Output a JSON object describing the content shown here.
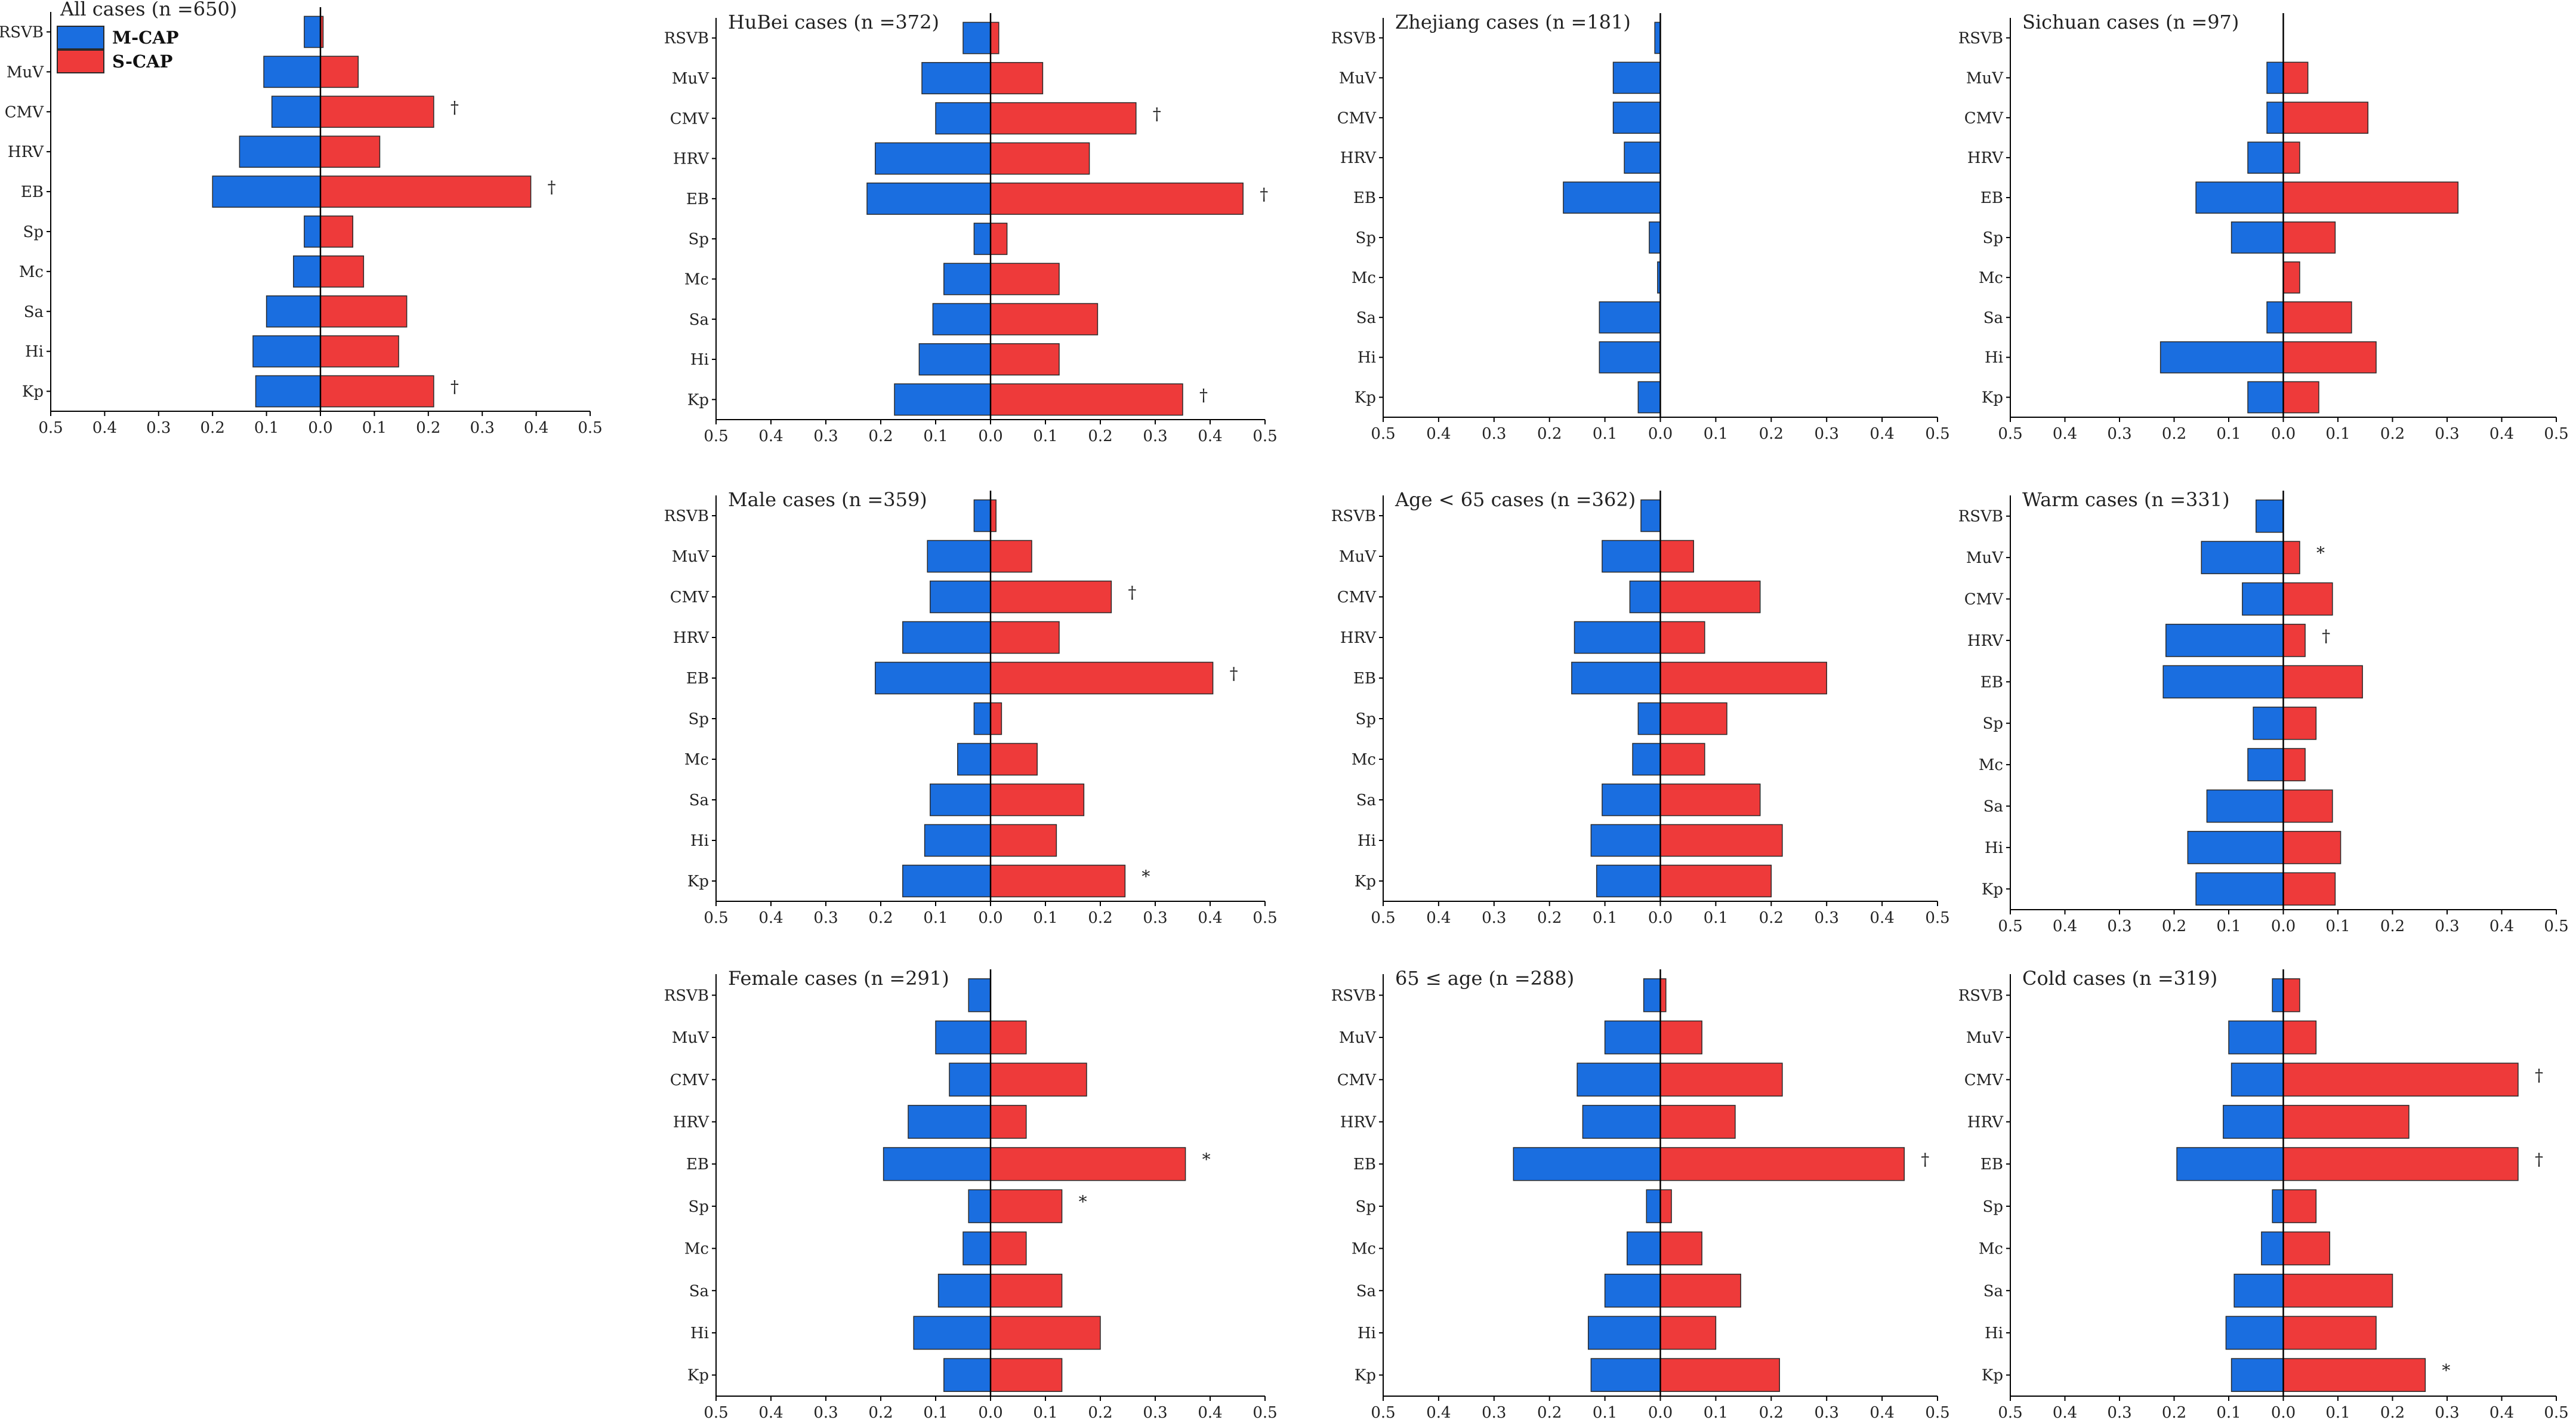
{
  "legend": {
    "items": [
      {
        "label": "M-CAP",
        "color": "#1a6ee0"
      },
      {
        "label": "S-CAP",
        "color": "#ee3a3a"
      }
    ]
  },
  "colors": {
    "m_cap": "#1a6ee0",
    "s_cap": "#ee3a3a",
    "outline": "#2a2a2a"
  },
  "chart_data": [
    {
      "type": "bar",
      "orientation": "horizontal",
      "layout": "diverging",
      "title": "All cases (n =650)",
      "categories": [
        "RSVB",
        "MuV",
        "CMV",
        "HRV",
        "EB",
        "Sp",
        "Mc",
        "Sa",
        "Hi",
        "Kp"
      ],
      "series": [
        {
          "name": "M-CAP",
          "values": [
            0.03,
            0.105,
            0.09,
            0.15,
            0.2,
            0.03,
            0.05,
            0.1,
            0.125,
            0.12
          ]
        },
        {
          "name": "S-CAP",
          "values": [
            0.005,
            0.07,
            0.21,
            0.11,
            0.39,
            0.06,
            0.08,
            0.16,
            0.145,
            0.21
          ]
        }
      ],
      "marks": [
        "",
        "",
        "†",
        "",
        "†",
        "",
        "",
        "",
        "",
        "†"
      ],
      "xlim": [
        -0.5,
        0.5
      ],
      "xtick_labels": [
        "0.5",
        "0.4",
        "0.3",
        "0.2",
        "0.1",
        "0.0",
        "0.1",
        "0.2",
        "0.3",
        "0.4",
        "0.5"
      ]
    },
    {
      "type": "bar",
      "orientation": "horizontal",
      "layout": "diverging",
      "title": "HuBei cases (n =372)",
      "categories": [
        "RSVB",
        "MuV",
        "CMV",
        "HRV",
        "EB",
        "Sp",
        "Mc",
        "Sa",
        "Hi",
        "Kp"
      ],
      "series": [
        {
          "name": "M-CAP",
          "values": [
            0.05,
            0.125,
            0.1,
            0.21,
            0.225,
            0.03,
            0.085,
            0.105,
            0.13,
            0.175
          ]
        },
        {
          "name": "S-CAP",
          "values": [
            0.015,
            0.095,
            0.265,
            0.18,
            0.46,
            0.03,
            0.125,
            0.195,
            0.125,
            0.35
          ]
        }
      ],
      "marks": [
        "",
        "",
        "†",
        "",
        "†",
        "",
        "",
        "",
        "",
        "†"
      ],
      "xlim": [
        -0.5,
        0.5
      ],
      "xtick_labels": [
        "0.5",
        "0.4",
        "0.3",
        "0.2",
        "0.1",
        "0.0",
        "0.1",
        "0.2",
        "0.3",
        "0.4",
        "0.5"
      ]
    },
    {
      "type": "bar",
      "orientation": "horizontal",
      "layout": "diverging",
      "title": "Zhejiang cases (n =181)",
      "categories": [
        "RSVB",
        "MuV",
        "CMV",
        "HRV",
        "EB",
        "Sp",
        "Mc",
        "Sa",
        "Hi",
        "Kp"
      ],
      "series": [
        {
          "name": "M-CAP",
          "values": [
            0.01,
            0.085,
            0.085,
            0.065,
            0.175,
            0.02,
            0.005,
            0.11,
            0.11,
            0.04
          ]
        },
        {
          "name": "S-CAP",
          "values": [
            0,
            0,
            0,
            0,
            0,
            0,
            0,
            0,
            0,
            0
          ]
        }
      ],
      "marks": [
        "",
        "",
        "",
        "",
        "",
        "",
        "",
        "",
        "",
        ""
      ],
      "xlim": [
        -0.5,
        0.5
      ],
      "xtick_labels": [
        "0.5",
        "0.4",
        "0.3",
        "0.2",
        "0.1",
        "0.0",
        "0.1",
        "0.2",
        "0.3",
        "0.4",
        "0.5"
      ]
    },
    {
      "type": "bar",
      "orientation": "horizontal",
      "layout": "diverging",
      "title": "Sichuan cases (n =97)",
      "categories": [
        "RSVB",
        "MuV",
        "CMV",
        "HRV",
        "EB",
        "Sp",
        "Mc",
        "Sa",
        "Hi",
        "Kp"
      ],
      "series": [
        {
          "name": "M-CAP",
          "values": [
            0,
            0.03,
            0.03,
            0.065,
            0.16,
            0.095,
            0,
            0.03,
            0.225,
            0.065
          ]
        },
        {
          "name": "S-CAP",
          "values": [
            0,
            0.045,
            0.155,
            0.03,
            0.32,
            0.095,
            0.03,
            0.125,
            0.17,
            0.065
          ]
        }
      ],
      "marks": [
        "",
        "",
        "",
        "",
        "",
        "",
        "",
        "",
        "",
        ""
      ],
      "xlim": [
        -0.5,
        0.5
      ],
      "xtick_labels": [
        "0.5",
        "0.4",
        "0.3",
        "0.2",
        "0.1",
        "0.0",
        "0.1",
        "0.2",
        "0.3",
        "0.4",
        "0.5"
      ]
    },
    {
      "type": "bar",
      "orientation": "horizontal",
      "layout": "diverging",
      "title": "Male cases (n =359)",
      "categories": [
        "RSVB",
        "MuV",
        "CMV",
        "HRV",
        "EB",
        "Sp",
        "Mc",
        "Sa",
        "Hi",
        "Kp"
      ],
      "series": [
        {
          "name": "M-CAP",
          "values": [
            0.03,
            0.115,
            0.11,
            0.16,
            0.21,
            0.03,
            0.06,
            0.11,
            0.12,
            0.16
          ]
        },
        {
          "name": "S-CAP",
          "values": [
            0.01,
            0.075,
            0.22,
            0.125,
            0.405,
            0.02,
            0.085,
            0.17,
            0.12,
            0.245
          ]
        }
      ],
      "marks": [
        "",
        "",
        "†",
        "",
        "†",
        "",
        "",
        "",
        "",
        "*"
      ],
      "xlim": [
        -0.5,
        0.5
      ],
      "xtick_labels": [
        "0.5",
        "0.4",
        "0.3",
        "0.2",
        "0.1",
        "0.0",
        "0.1",
        "0.2",
        "0.3",
        "0.4",
        "0.5"
      ]
    },
    {
      "type": "bar",
      "orientation": "horizontal",
      "layout": "diverging",
      "title": "Age < 65 cases (n =362)",
      "categories": [
        "RSVB",
        "MuV",
        "CMV",
        "HRV",
        "EB",
        "Sp",
        "Mc",
        "Sa",
        "Hi",
        "Kp"
      ],
      "series": [
        {
          "name": "M-CAP",
          "values": [
            0.035,
            0.105,
            0.055,
            0.155,
            0.16,
            0.04,
            0.05,
            0.105,
            0.125,
            0.115
          ]
        },
        {
          "name": "S-CAP",
          "values": [
            0,
            0.06,
            0.18,
            0.08,
            0.3,
            0.12,
            0.08,
            0.18,
            0.22,
            0.2
          ]
        }
      ],
      "marks": [
        "",
        "",
        "",
        "",
        "",
        "",
        "",
        "",
        "",
        ""
      ],
      "xlim": [
        -0.5,
        0.5
      ],
      "xtick_labels": [
        "0.5",
        "0.4",
        "0.3",
        "0.2",
        "0.1",
        "0.0",
        "0.1",
        "0.2",
        "0.3",
        "0.4",
        "0.5"
      ]
    },
    {
      "type": "bar",
      "orientation": "horizontal",
      "layout": "diverging",
      "title": "Warm cases (n =331)",
      "categories": [
        "RSVB",
        "MuV",
        "CMV",
        "HRV",
        "EB",
        "Sp",
        "Mc",
        "Sa",
        "Hi",
        "Kp"
      ],
      "series": [
        {
          "name": "M-CAP",
          "values": [
            0.05,
            0.15,
            0.075,
            0.215,
            0.22,
            0.055,
            0.065,
            0.14,
            0.175,
            0.16
          ]
        },
        {
          "name": "S-CAP",
          "values": [
            0,
            0.03,
            0.09,
            0.04,
            0.145,
            0.06,
            0.04,
            0.09,
            0.105,
            0.095
          ]
        }
      ],
      "marks": [
        "",
        "*",
        "",
        "†",
        "",
        "",
        "",
        "",
        "",
        ""
      ],
      "xlim": [
        -0.5,
        0.5
      ],
      "xtick_labels": [
        "0.5",
        "0.4",
        "0.3",
        "0.2",
        "0.1",
        "0.0",
        "0.1",
        "0.2",
        "0.3",
        "0.4",
        "0.5"
      ]
    },
    {
      "type": "bar",
      "orientation": "horizontal",
      "layout": "diverging",
      "title": "Female cases (n =291)",
      "categories": [
        "RSVB",
        "MuV",
        "CMV",
        "HRV",
        "EB",
        "Sp",
        "Mc",
        "Sa",
        "Hi",
        "Kp"
      ],
      "series": [
        {
          "name": "M-CAP",
          "values": [
            0.04,
            0.1,
            0.075,
            0.15,
            0.195,
            0.04,
            0.05,
            0.095,
            0.14,
            0.085
          ]
        },
        {
          "name": "S-CAP",
          "values": [
            0,
            0.065,
            0.175,
            0.065,
            0.355,
            0.13,
            0.065,
            0.13,
            0.2,
            0.13
          ]
        }
      ],
      "marks": [
        "",
        "",
        "",
        "",
        "*",
        "*",
        "",
        "",
        "",
        ""
      ],
      "xlim": [
        -0.5,
        0.5
      ],
      "xtick_labels": [
        "0.5",
        "0.4",
        "0.3",
        "0.2",
        "0.1",
        "0.0",
        "0.1",
        "0.2",
        "0.3",
        "0.4",
        "0.5"
      ]
    },
    {
      "type": "bar",
      "orientation": "horizontal",
      "layout": "diverging",
      "title": "65 ≤ age  (n =288)",
      "categories": [
        "RSVB",
        "MuV",
        "CMV",
        "HRV",
        "EB",
        "Sp",
        "Mc",
        "Sa",
        "Hi",
        "Kp"
      ],
      "series": [
        {
          "name": "M-CAP",
          "values": [
            0.03,
            0.1,
            0.15,
            0.14,
            0.265,
            0.025,
            0.06,
            0.1,
            0.13,
            0.125
          ]
        },
        {
          "name": "S-CAP",
          "values": [
            0.01,
            0.075,
            0.22,
            0.135,
            0.44,
            0.02,
            0.075,
            0.145,
            0.1,
            0.215
          ]
        }
      ],
      "marks": [
        "",
        "",
        "",
        "",
        "†",
        "",
        "",
        "",
        "",
        ""
      ],
      "xlim": [
        -0.5,
        0.5
      ],
      "xtick_labels": [
        "0.5",
        "0.4",
        "0.3",
        "0.2",
        "0.1",
        "0.0",
        "0.1",
        "0.2",
        "0.3",
        "0.4",
        "0.5"
      ]
    },
    {
      "type": "bar",
      "orientation": "horizontal",
      "layout": "diverging",
      "title": "Cold cases (n =319)",
      "categories": [
        "RSVB",
        "MuV",
        "CMV",
        "HRV",
        "EB",
        "Sp",
        "Mc",
        "Sa",
        "Hi",
        "Kp"
      ],
      "series": [
        {
          "name": "M-CAP",
          "values": [
            0.02,
            0.1,
            0.095,
            0.11,
            0.195,
            0.02,
            0.04,
            0.09,
            0.105,
            0.095
          ]
        },
        {
          "name": "S-CAP",
          "values": [
            0.03,
            0.06,
            0.43,
            0.23,
            0.43,
            0.06,
            0.085,
            0.2,
            0.17,
            0.26
          ]
        }
      ],
      "marks": [
        "",
        "",
        "†",
        "",
        "†",
        "",
        "",
        "",
        "",
        "*"
      ],
      "xlim": [
        -0.5,
        0.5
      ],
      "xtick_labels": [
        "0.5",
        "0.4",
        "0.3",
        "0.2",
        "0.1",
        "0.0",
        "0.1",
        "0.2",
        "0.3",
        "0.4",
        "0.5"
      ]
    }
  ]
}
